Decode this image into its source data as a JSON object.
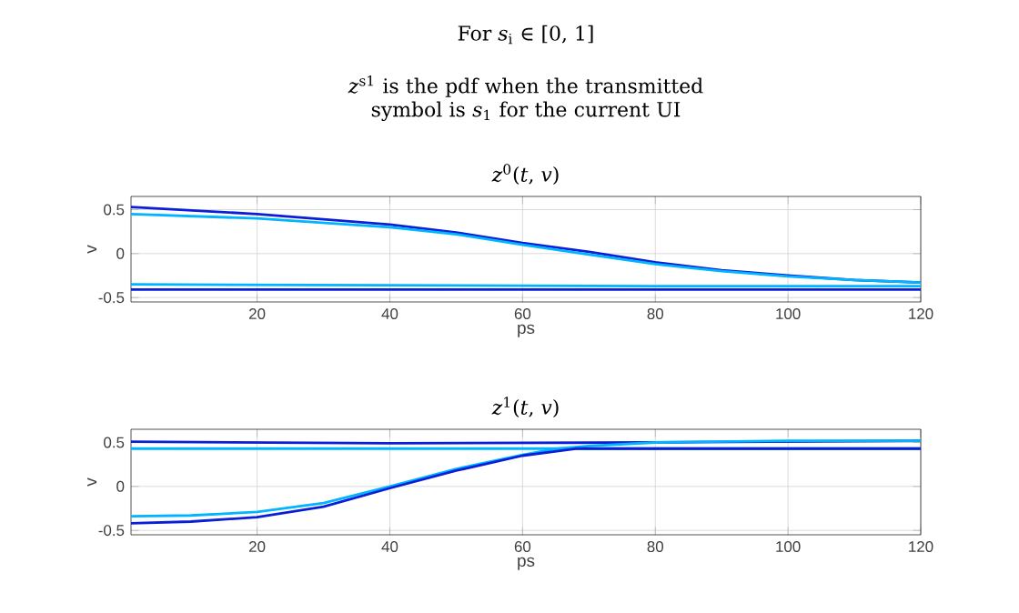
{
  "chart_data": [
    {
      "type": "other",
      "title": "For *s*$_{i}$ ∈ [0, 1]",
      "subtitle": "*z*$^{s1}$ is the pdf when the transmitted symbol is *s*$_{1}$ for the current UI"
    },
    {
      "type": "line",
      "title": "*z*$^{0}$(*t*, *v*)",
      "xlabel": "ps",
      "ylabel": "v",
      "xlim": [
        1,
        120
      ],
      "ylim": [
        -0.55,
        0.65
      ],
      "xticks": [
        20,
        40,
        60,
        80,
        100,
        120
      ],
      "yticks": [
        -0.5,
        0,
        0.5
      ],
      "grid": true,
      "series": [
        {
          "color": "#0a1ed8",
          "x": [
            1,
            20,
            40,
            50,
            60,
            70,
            80,
            90,
            100,
            110,
            120
          ],
          "values": [
            0.53,
            0.45,
            0.33,
            0.24,
            0.12,
            0.02,
            -0.1,
            -0.19,
            -0.25,
            -0.3,
            -0.33
          ]
        },
        {
          "color": "#00b4ff",
          "x": [
            1,
            20,
            40,
            50,
            60,
            70,
            80,
            90,
            100,
            110,
            120
          ],
          "values": [
            0.45,
            0.4,
            0.3,
            0.22,
            0.1,
            -0.01,
            -0.12,
            -0.2,
            -0.26,
            -0.3,
            -0.33
          ]
        },
        {
          "color": "#00b4ff",
          "x": [
            1,
            40,
            80,
            120
          ],
          "values": [
            -0.35,
            -0.36,
            -0.37,
            -0.37
          ]
        },
        {
          "color": "#0a1ed8",
          "x": [
            1,
            40,
            80,
            120
          ],
          "values": [
            -0.41,
            -0.41,
            -0.41,
            -0.41
          ]
        }
      ]
    },
    {
      "type": "line",
      "title": "*z*$^{1}$(*t*, *v*)",
      "xlabel": "ps",
      "ylabel": "v",
      "xlim": [
        1,
        120
      ],
      "ylim": [
        -0.55,
        0.65
      ],
      "xticks": [
        20,
        40,
        60,
        80,
        100,
        120
      ],
      "yticks": [
        -0.5,
        0,
        0.5
      ],
      "grid": true,
      "series": [
        {
          "color": "#0a1ed8",
          "x": [
            1,
            40,
            80,
            120
          ],
          "values": [
            0.51,
            0.49,
            0.5,
            0.52
          ]
        },
        {
          "color": "#00b4ff",
          "x": [
            1,
            40,
            80,
            120
          ],
          "values": [
            0.43,
            0.43,
            0.43,
            0.43
          ]
        },
        {
          "color": "#00b4ff",
          "x": [
            1,
            10,
            20,
            30,
            40,
            50,
            60,
            65,
            70,
            80,
            100,
            120
          ],
          "values": [
            -0.34,
            -0.33,
            -0.29,
            -0.19,
            0.0,
            0.2,
            0.36,
            0.43,
            0.46,
            0.5,
            0.52,
            0.52
          ]
        },
        {
          "color": "#0a1ed8",
          "x": [
            1,
            10,
            20,
            30,
            40,
            50,
            60,
            68,
            80,
            100,
            120
          ],
          "values": [
            -0.42,
            -0.4,
            -0.35,
            -0.23,
            -0.02,
            0.18,
            0.35,
            0.43,
            0.43,
            0.43,
            0.43
          ]
        }
      ]
    }
  ]
}
